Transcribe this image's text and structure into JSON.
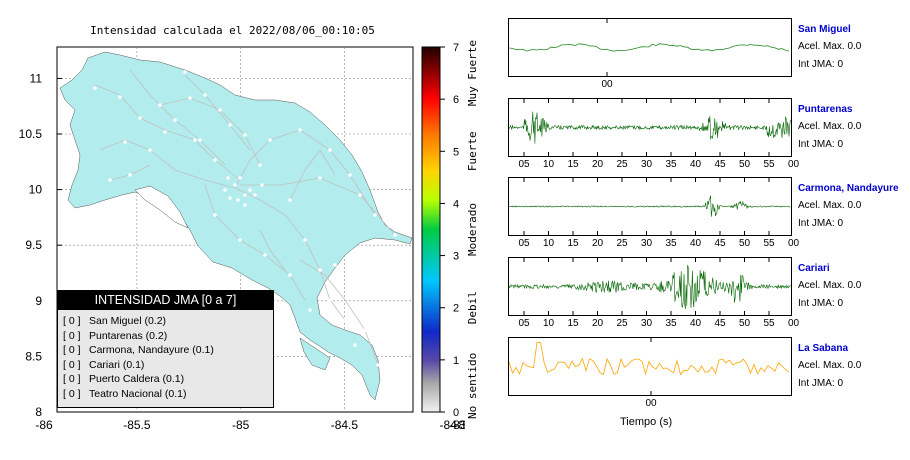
{
  "map": {
    "title": "Intensidad calculada el 2022/08/06_00:10:05",
    "x_ticks": [
      "-86",
      "-85.5",
      "-85",
      "-84.5",
      "-84",
      "-83.5",
      "-83"
    ],
    "y_ticks": [
      "11",
      "10.5",
      "10",
      "9.5",
      "9",
      "8.5",
      "8"
    ],
    "land_color": "#b2ecec",
    "road_color": "#c0c0c0"
  },
  "colorbar": {
    "ticks": [
      "0",
      "1",
      "2",
      "3",
      "4",
      "5",
      "6",
      "7"
    ],
    "labels": [
      "No sentido",
      "Debil",
      "Moderado",
      "Fuerte",
      "Muy Fuerte"
    ]
  },
  "legend": {
    "header": "INTENSIDAD JMA [0 a 7]",
    "rows": [
      {
        "level": "[ 0 ]",
        "station": "San Miguel (0.2)"
      },
      {
        "level": "[ 0 ]",
        "station": "Puntarenas (0.2)"
      },
      {
        "level": "[ 0 ]",
        "station": "Carmona, Nandayure (0.1)"
      },
      {
        "level": "[ 0 ]",
        "station": "Cariari (0.1)"
      },
      {
        "level": "[ 0 ]",
        "station": "Puerto Caldera (0.1)"
      },
      {
        "level": "[ 0 ]",
        "station": "Teatro Nacional (0.1)"
      }
    ]
  },
  "stations": [
    {
      "name": "San Miguel",
      "accel": "Acel. Max. 0.0",
      "jma": "Int JMA: 0",
      "color": "#228b22",
      "ticks": [
        "00"
      ]
    },
    {
      "name": "Puntarenas",
      "accel": "Acel. Max. 0.0",
      "jma": "Int JMA: 0",
      "color": "#006400",
      "ticks": [
        "05",
        "10",
        "15",
        "20",
        "25",
        "30",
        "35",
        "40",
        "45",
        "50",
        "55",
        "00"
      ]
    },
    {
      "name": "Carmona, Nandayure",
      "accel": "Acel. Max. 0.0",
      "jma": "Int JMA: 0",
      "color": "#006400",
      "ticks": [
        "05",
        "10",
        "15",
        "20",
        "25",
        "30",
        "35",
        "40",
        "45",
        "50",
        "55",
        "00"
      ]
    },
    {
      "name": "Cariari",
      "accel": "Acel. Max. 0.0",
      "jma": "Int JMA: 0",
      "color": "#006400",
      "ticks": [
        "05",
        "10",
        "15",
        "20",
        "25",
        "30",
        "35",
        "40",
        "45",
        "50",
        "55",
        "00"
      ]
    },
    {
      "name": "La Sabana",
      "accel": "Acel. Max. 0.0",
      "jma": "Int JMA: 0",
      "color": "#ffa500",
      "ticks": [
        "00"
      ]
    }
  ],
  "xlabel": "Tiempo (s)"
}
